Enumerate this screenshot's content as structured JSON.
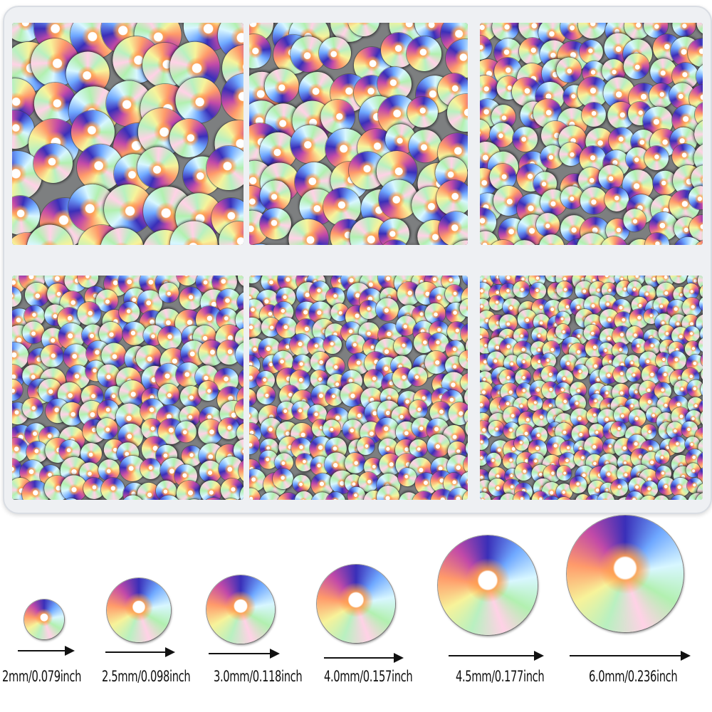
{
  "product": "rhinestone-storage-box",
  "compartments": [
    {
      "id": "top-left",
      "size_mm": 6.0
    },
    {
      "id": "top-middle",
      "size_mm": 4.5
    },
    {
      "id": "top-right",
      "size_mm": 4.0
    },
    {
      "id": "bottom-left",
      "size_mm": 3.0
    },
    {
      "id": "bottom-middle",
      "size_mm": 2.5
    },
    {
      "id": "bottom-right",
      "size_mm": 2.0
    }
  ],
  "sizes": [
    {
      "label": "2mm/0.079inch"
    },
    {
      "label": "2.5mm/0.098inch"
    },
    {
      "label": "3.0mm/0.118inch"
    },
    {
      "label": "4.0mm/0.157inch"
    },
    {
      "label": "4.5mm/0.177inch"
    },
    {
      "label": "6.0mm/0.236inch"
    }
  ],
  "colors": {
    "tray": "#eef0f3",
    "compartment": "#7d7f80",
    "text": "#111111"
  }
}
